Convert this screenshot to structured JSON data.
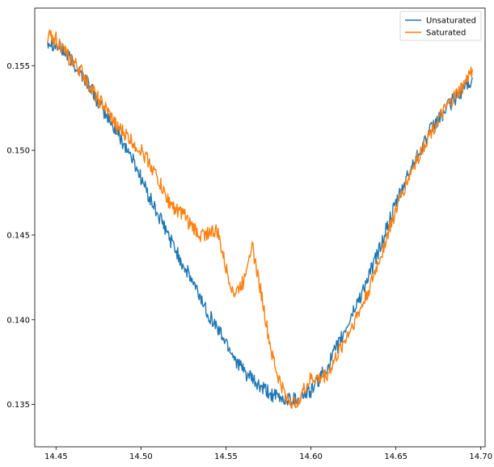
{
  "chart_data": {
    "type": "line",
    "title": "",
    "xlabel": "",
    "ylabel": "",
    "xlim": [
      14.4375,
      14.7025
    ],
    "ylim": [
      0.1325,
      0.1584
    ],
    "xticks": [
      14.45,
      14.5,
      14.55,
      14.6,
      14.65,
      14.7
    ],
    "xtick_labels": [
      "14.45",
      "14.50",
      "14.55",
      "14.60",
      "14.65",
      "14.70"
    ],
    "yticks": [
      0.135,
      0.14,
      0.145,
      0.15,
      0.155
    ],
    "ytick_labels": [
      "0.135",
      "0.140",
      "0.145",
      "0.150",
      "0.155"
    ],
    "grid": false,
    "legend_position": "top-right",
    "series": [
      {
        "name": "Unsaturated",
        "color": "#1f77b4",
        "x": [
          14.445,
          14.45,
          14.455,
          14.46,
          14.465,
          14.47,
          14.475,
          14.48,
          14.485,
          14.49,
          14.495,
          14.5,
          14.505,
          14.51,
          14.515,
          14.52,
          14.525,
          14.53,
          14.535,
          14.54,
          14.545,
          14.55,
          14.555,
          14.56,
          14.565,
          14.57,
          14.575,
          14.58,
          14.585,
          14.59,
          14.595,
          14.6,
          14.605,
          14.61,
          14.615,
          14.62,
          14.625,
          14.63,
          14.635,
          14.64,
          14.645,
          14.65,
          14.655,
          14.66,
          14.665,
          14.67,
          14.675,
          14.68,
          14.685,
          14.69,
          14.695
        ],
        "y": [
          0.1565,
          0.1562,
          0.1558,
          0.1552,
          0.1545,
          0.1538,
          0.1528,
          0.152,
          0.1512,
          0.1504,
          0.1495,
          0.1484,
          0.1472,
          0.1462,
          0.1452,
          0.1442,
          0.1432,
          0.1423,
          0.1413,
          0.1403,
          0.1395,
          0.1387,
          0.1378,
          0.137,
          0.1365,
          0.136,
          0.1357,
          0.1354,
          0.1353,
          0.1353,
          0.1355,
          0.1358,
          0.1365,
          0.1373,
          0.1383,
          0.1393,
          0.1405,
          0.1416,
          0.1428,
          0.1441,
          0.1455,
          0.1468,
          0.148,
          0.1492,
          0.1502,
          0.1511,
          0.1518,
          0.1525,
          0.1531,
          0.1537,
          0.1543
        ]
      },
      {
        "name": "Saturated",
        "color": "#ff7f0e",
        "x": [
          14.445,
          14.45,
          14.455,
          14.46,
          14.465,
          14.47,
          14.475,
          14.48,
          14.485,
          14.49,
          14.495,
          14.5,
          14.505,
          14.51,
          14.515,
          14.52,
          14.525,
          14.53,
          14.535,
          14.54,
          14.545,
          14.55,
          14.555,
          14.56,
          14.565,
          14.57,
          14.575,
          14.58,
          14.585,
          14.59,
          14.595,
          14.6,
          14.605,
          14.61,
          14.615,
          14.62,
          14.625,
          14.63,
          14.635,
          14.64,
          14.645,
          14.65,
          14.655,
          14.66,
          14.665,
          14.67,
          14.675,
          14.68,
          14.685,
          14.69,
          14.695
        ],
        "y": [
          0.1567,
          0.1566,
          0.1558,
          0.1552,
          0.1546,
          0.1538,
          0.153,
          0.1523,
          0.1515,
          0.151,
          0.1505,
          0.15,
          0.1493,
          0.1483,
          0.1472,
          0.1466,
          0.1462,
          0.1455,
          0.145,
          0.1452,
          0.1452,
          0.143,
          0.1415,
          0.1422,
          0.1445,
          0.142,
          0.139,
          0.1368,
          0.1355,
          0.135,
          0.1357,
          0.1365,
          0.1365,
          0.1368,
          0.1378,
          0.1388,
          0.1398,
          0.1408,
          0.142,
          0.1435,
          0.145,
          0.1465,
          0.1478,
          0.149,
          0.15,
          0.151,
          0.1518,
          0.1525,
          0.1532,
          0.1538,
          0.1548
        ]
      }
    ]
  }
}
